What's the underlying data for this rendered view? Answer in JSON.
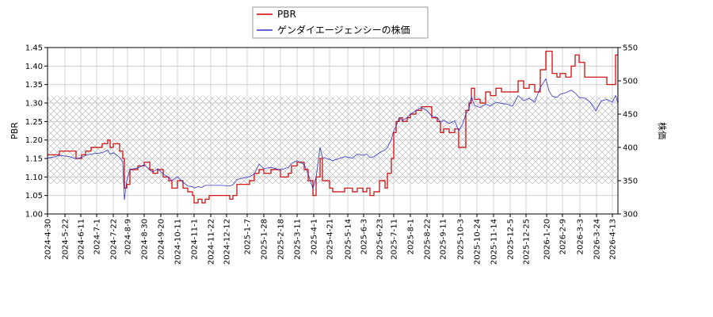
{
  "chart_data": {
    "type": "line",
    "legend": {
      "placement": "top-center",
      "entries": [
        {
          "label": "PBR",
          "color": "#cc0000"
        },
        {
          "label": "ゲンダイエージェンシーの株価",
          "color": "#3333cc"
        }
      ]
    },
    "y_left": {
      "label": "PBR",
      "lim": [
        1.0,
        1.45
      ],
      "ticks": [
        "1.00",
        "1.05",
        "1.10",
        "1.15",
        "1.20",
        "1.25",
        "1.30",
        "1.35",
        "1.40",
        "1.45"
      ]
    },
    "y_right": {
      "label": "株価",
      "lim": [
        300,
        550
      ],
      "ticks": [
        "300",
        "350",
        "400",
        "450",
        "500",
        "550"
      ]
    },
    "x": {
      "start": "2024-04-30",
      "end": "2026-04-20",
      "tick_labels": [
        "2024-4-30",
        "2024-5-22",
        "2024-6-11",
        "2024-7-1",
        "2024-7-22",
        "2024-8-9",
        "2024-8-30",
        "2024-9-20",
        "2024-10-11",
        "2024-11-1",
        "2024-11-22",
        "2024-12-12",
        "2025-1-7",
        "2025-1-28",
        "2025-2-18",
        "2025-3-11",
        "2025-4-1",
        "2025-4-21",
        "2025-5-14",
        "2025-6-3",
        "2025-6-23",
        "2025-7-11",
        "2025-8-1",
        "2025-8-22",
        "2025-9-11",
        "2025-10-3",
        "2025-10-24",
        "2025-11-14",
        "2025-12-5",
        "2025-12-25",
        "2026-1-20",
        "2026-2-9",
        "2026-3-3",
        "2026-3-24",
        "2026-4-13"
      ]
    },
    "shaded_band_price": [
      345,
      476
    ],
    "grid": true,
    "series": [
      {
        "name": "PBR",
        "axis": "left",
        "color": "#cc0000",
        "points": [
          [
            "2024-04-30",
            1.16
          ],
          [
            "2024-05-10",
            1.16
          ],
          [
            "2024-05-15",
            1.17
          ],
          [
            "2024-05-28",
            1.17
          ],
          [
            "2024-06-05",
            1.15
          ],
          [
            "2024-06-12",
            1.16
          ],
          [
            "2024-06-17",
            1.17
          ],
          [
            "2024-06-24",
            1.18
          ],
          [
            "2024-07-08",
            1.19
          ],
          [
            "2024-07-15",
            1.2
          ],
          [
            "2024-07-18",
            1.18
          ],
          [
            "2024-07-22",
            1.19
          ],
          [
            "2024-07-30",
            1.17
          ],
          [
            "2024-08-03",
            1.15
          ],
          [
            "2024-08-05",
            1.07
          ],
          [
            "2024-08-08",
            1.08
          ],
          [
            "2024-08-12",
            1.12
          ],
          [
            "2024-08-22",
            1.13
          ],
          [
            "2024-08-30",
            1.14
          ],
          [
            "2024-09-06",
            1.12
          ],
          [
            "2024-09-10",
            1.11
          ],
          [
            "2024-09-16",
            1.12
          ],
          [
            "2024-09-23",
            1.1
          ],
          [
            "2024-09-30",
            1.09
          ],
          [
            "2024-10-04",
            1.07
          ],
          [
            "2024-10-11",
            1.09
          ],
          [
            "2024-10-18",
            1.07
          ],
          [
            "2024-10-24",
            1.06
          ],
          [
            "2024-10-30",
            1.05
          ],
          [
            "2024-11-01",
            1.03
          ],
          [
            "2024-11-06",
            1.04
          ],
          [
            "2024-11-11",
            1.03
          ],
          [
            "2024-11-15",
            1.04
          ],
          [
            "2024-11-20",
            1.05
          ],
          [
            "2024-12-05",
            1.05
          ],
          [
            "2024-12-16",
            1.04
          ],
          [
            "2024-12-20",
            1.05
          ],
          [
            "2024-12-25",
            1.08
          ],
          [
            "2025-01-10",
            1.09
          ],
          [
            "2025-01-16",
            1.11
          ],
          [
            "2025-01-22",
            1.12
          ],
          [
            "2025-01-28",
            1.11
          ],
          [
            "2025-02-06",
            1.12
          ],
          [
            "2025-02-18",
            1.1
          ],
          [
            "2025-02-28",
            1.11
          ],
          [
            "2025-03-04",
            1.13
          ],
          [
            "2025-03-11",
            1.14
          ],
          [
            "2025-03-20",
            1.12
          ],
          [
            "2025-03-25",
            1.09
          ],
          [
            "2025-03-31",
            1.05
          ],
          [
            "2025-04-04",
            1.1
          ],
          [
            "2025-04-09",
            1.15
          ],
          [
            "2025-04-12",
            1.09
          ],
          [
            "2025-04-21",
            1.07
          ],
          [
            "2025-04-25",
            1.06
          ],
          [
            "2025-05-10",
            1.07
          ],
          [
            "2025-05-20",
            1.06
          ],
          [
            "2025-05-26",
            1.07
          ],
          [
            "2025-06-02",
            1.06
          ],
          [
            "2025-06-07",
            1.07
          ],
          [
            "2025-06-11",
            1.05
          ],
          [
            "2025-06-16",
            1.06
          ],
          [
            "2025-06-23",
            1.09
          ],
          [
            "2025-06-30",
            1.07
          ],
          [
            "2025-07-03",
            1.11
          ],
          [
            "2025-07-08",
            1.15
          ],
          [
            "2025-07-11",
            1.22
          ],
          [
            "2025-07-14",
            1.25
          ],
          [
            "2025-07-18",
            1.26
          ],
          [
            "2025-07-22",
            1.25
          ],
          [
            "2025-07-28",
            1.26
          ],
          [
            "2025-08-01",
            1.27
          ],
          [
            "2025-08-08",
            1.28
          ],
          [
            "2025-08-15",
            1.29
          ],
          [
            "2025-08-22",
            1.29
          ],
          [
            "2025-08-28",
            1.26
          ],
          [
            "2025-09-04",
            1.25
          ],
          [
            "2025-09-08",
            1.22
          ],
          [
            "2025-09-12",
            1.23
          ],
          [
            "2025-09-19",
            1.22
          ],
          [
            "2025-09-26",
            1.23
          ],
          [
            "2025-10-01",
            1.18
          ],
          [
            "2025-10-06",
            1.18
          ],
          [
            "2025-10-10",
            1.28
          ],
          [
            "2025-10-14",
            1.3
          ],
          [
            "2025-10-17",
            1.34
          ],
          [
            "2025-10-21",
            1.31
          ],
          [
            "2025-10-28",
            1.3
          ],
          [
            "2025-11-04",
            1.33
          ],
          [
            "2025-11-10",
            1.32
          ],
          [
            "2025-11-17",
            1.34
          ],
          [
            "2025-11-24",
            1.33
          ],
          [
            "2025-12-01",
            1.33
          ],
          [
            "2025-12-08",
            1.33
          ],
          [
            "2025-12-15",
            1.36
          ],
          [
            "2025-12-22",
            1.34
          ],
          [
            "2025-12-29",
            1.35
          ],
          [
            "2026-01-05",
            1.33
          ],
          [
            "2026-01-12",
            1.39
          ],
          [
            "2026-01-19",
            1.44
          ],
          [
            "2026-01-23",
            1.44
          ],
          [
            "2026-01-27",
            1.38
          ],
          [
            "2026-02-02",
            1.37
          ],
          [
            "2026-02-06",
            1.38
          ],
          [
            "2026-02-13",
            1.37
          ],
          [
            "2026-02-20",
            1.4
          ],
          [
            "2026-02-25",
            1.43
          ],
          [
            "2026-03-02",
            1.41
          ],
          [
            "2026-03-09",
            1.37
          ],
          [
            "2026-03-16",
            1.37
          ],
          [
            "2026-03-23",
            1.37
          ],
          [
            "2026-03-30",
            1.37
          ],
          [
            "2026-04-06",
            1.35
          ],
          [
            "2026-04-13",
            1.35
          ],
          [
            "2026-04-17",
            1.43
          ],
          [
            "2026-04-20",
            1.31
          ]
        ]
      },
      {
        "name": "ゲンダイエージェンシーの株価",
        "axis": "right",
        "color": "#3333cc",
        "points": [
          [
            "2024-04-30",
            384
          ],
          [
            "2024-05-10",
            386
          ],
          [
            "2024-05-15",
            388
          ],
          [
            "2024-05-28",
            386
          ],
          [
            "2024-06-05",
            383
          ],
          [
            "2024-06-12",
            385
          ],
          [
            "2024-06-17",
            388
          ],
          [
            "2024-06-24",
            390
          ],
          [
            "2024-07-08",
            392
          ],
          [
            "2024-07-15",
            396
          ],
          [
            "2024-07-18",
            390
          ],
          [
            "2024-07-22",
            392
          ],
          [
            "2024-07-30",
            385
          ],
          [
            "2024-08-03",
            378
          ],
          [
            "2024-08-05",
            321
          ],
          [
            "2024-08-08",
            350
          ],
          [
            "2024-08-12",
            367
          ],
          [
            "2024-08-22",
            369
          ],
          [
            "2024-08-30",
            374
          ],
          [
            "2024-09-06",
            366
          ],
          [
            "2024-09-10",
            363
          ],
          [
            "2024-09-16",
            368
          ],
          [
            "2024-09-23",
            360
          ],
          [
            "2024-09-30",
            355
          ],
          [
            "2024-10-04",
            350
          ],
          [
            "2024-10-11",
            356
          ],
          [
            "2024-10-18",
            348
          ],
          [
            "2024-10-24",
            342
          ],
          [
            "2024-10-30",
            341
          ],
          [
            "2024-11-01",
            339
          ],
          [
            "2024-11-06",
            341
          ],
          [
            "2024-11-11",
            340
          ],
          [
            "2024-11-15",
            343
          ],
          [
            "2024-11-20",
            343
          ],
          [
            "2024-12-05",
            343
          ],
          [
            "2024-12-16",
            342
          ],
          [
            "2024-12-20",
            344
          ],
          [
            "2024-12-25",
            352
          ],
          [
            "2025-01-10",
            356
          ],
          [
            "2025-01-16",
            360
          ],
          [
            "2025-01-22",
            375
          ],
          [
            "2025-01-28",
            368
          ],
          [
            "2025-02-06",
            370
          ],
          [
            "2025-02-18",
            366
          ],
          [
            "2025-02-28",
            370
          ],
          [
            "2025-03-04",
            376
          ],
          [
            "2025-03-11",
            380
          ],
          [
            "2025-03-20",
            374
          ],
          [
            "2025-03-25",
            360
          ],
          [
            "2025-03-31",
            338
          ],
          [
            "2025-04-04",
            355
          ],
          [
            "2025-04-09",
            400
          ],
          [
            "2025-04-12",
            385
          ],
          [
            "2025-04-21",
            382
          ],
          [
            "2025-04-25",
            380
          ],
          [
            "2025-05-10",
            386
          ],
          [
            "2025-05-20",
            384
          ],
          [
            "2025-05-26",
            390
          ],
          [
            "2025-06-02",
            388
          ],
          [
            "2025-06-07",
            390
          ],
          [
            "2025-06-11",
            385
          ],
          [
            "2025-06-16",
            386
          ],
          [
            "2025-06-23",
            392
          ],
          [
            "2025-06-30",
            396
          ],
          [
            "2025-07-03",
            400
          ],
          [
            "2025-07-08",
            412
          ],
          [
            "2025-07-11",
            425
          ],
          [
            "2025-07-14",
            432
          ],
          [
            "2025-07-18",
            445
          ],
          [
            "2025-07-22",
            440
          ],
          [
            "2025-07-28",
            445
          ],
          [
            "2025-08-01",
            450
          ],
          [
            "2025-08-08",
            455
          ],
          [
            "2025-08-15",
            460
          ],
          [
            "2025-08-22",
            455
          ],
          [
            "2025-08-28",
            447
          ],
          [
            "2025-09-04",
            445
          ],
          [
            "2025-09-08",
            438
          ],
          [
            "2025-09-12",
            441
          ],
          [
            "2025-09-19",
            436
          ],
          [
            "2025-09-26",
            440
          ],
          [
            "2025-10-01",
            425
          ],
          [
            "2025-10-06",
            435
          ],
          [
            "2025-10-10",
            450
          ],
          [
            "2025-10-14",
            458
          ],
          [
            "2025-10-17",
            476
          ],
          [
            "2025-10-21",
            463
          ],
          [
            "2025-10-28",
            460
          ],
          [
            "2025-11-04",
            465
          ],
          [
            "2025-11-10",
            462
          ],
          [
            "2025-11-17",
            468
          ],
          [
            "2025-11-24",
            466
          ],
          [
            "2025-12-01",
            465
          ],
          [
            "2025-12-08",
            462
          ],
          [
            "2025-12-15",
            478
          ],
          [
            "2025-12-22",
            470
          ],
          [
            "2025-12-29",
            474
          ],
          [
            "2026-01-05",
            468
          ],
          [
            "2026-01-12",
            490
          ],
          [
            "2026-01-19",
            503
          ],
          [
            "2026-01-23",
            485
          ],
          [
            "2026-01-27",
            477
          ],
          [
            "2026-02-02",
            475
          ],
          [
            "2026-02-06",
            480
          ],
          [
            "2026-02-13",
            482
          ],
          [
            "2026-02-20",
            486
          ],
          [
            "2026-02-25",
            482
          ],
          [
            "2026-03-02",
            475
          ],
          [
            "2026-03-09",
            474
          ],
          [
            "2026-03-16",
            468
          ],
          [
            "2026-03-23",
            455
          ],
          [
            "2026-03-30",
            470
          ],
          [
            "2026-04-06",
            472
          ],
          [
            "2026-04-13",
            468
          ],
          [
            "2026-04-17",
            478
          ],
          [
            "2026-04-20",
            466
          ]
        ]
      }
    ]
  }
}
